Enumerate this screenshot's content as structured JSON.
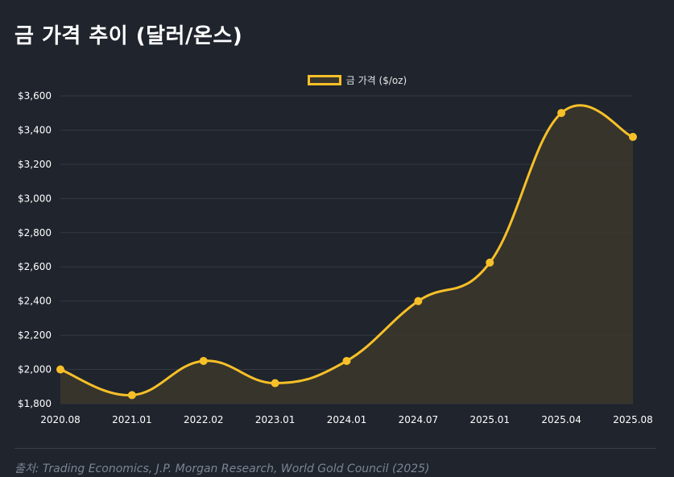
{
  "title": "금 가격 추이 (달러/온스)",
  "source": "출처: Trading Economics, J.P. Morgan Research, World Gold Council (2025)",
  "colors": {
    "background": "#1f242d",
    "line": "#f7c028",
    "fill": "#3a362c",
    "grid": "#333a45"
  },
  "chart_data": {
    "type": "area",
    "categories": [
      "2020.08",
      "2021.01",
      "2022.02",
      "2023.01",
      "2024.01",
      "2024.07",
      "2025.01",
      "2025.04",
      "2025.08"
    ],
    "series": [
      {
        "name": "금 가격 ($/oz)",
        "values": [
          2000,
          1850,
          2050,
          1920,
          2050,
          2400,
          2625,
          3500,
          3360
        ]
      }
    ],
    "ylim": [
      1800,
      3600
    ],
    "yticks": [
      "$1,800",
      "$2,000",
      "$2,200",
      "$2,400",
      "$2,600",
      "$2,800",
      "$3,000",
      "$3,200",
      "$3,400",
      "$3,600"
    ],
    "ytick_values": [
      1800,
      2000,
      2200,
      2400,
      2600,
      2800,
      3000,
      3200,
      3400,
      3600
    ],
    "grid": true,
    "legend_position": "top-center",
    "smooth": true
  }
}
